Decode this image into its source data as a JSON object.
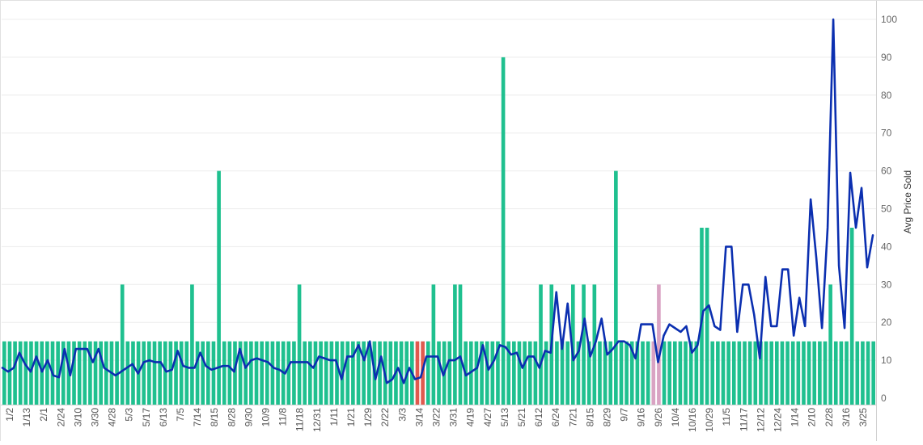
{
  "chart_data": {
    "type": "bar",
    "ylabel": "Avg Price Sold",
    "ylim": [
      0,
      100
    ],
    "y_ticks": [
      0,
      10,
      20,
      30,
      40,
      50,
      60,
      70,
      80,
      90,
      100
    ],
    "grid": "horizontal",
    "y_axis_position": "right",
    "x_tick_labels": [
      "1/2",
      "1/13",
      "2/1",
      "2/24",
      "3/10",
      "3/30",
      "4/28",
      "5/3",
      "5/17",
      "6/13",
      "7/5",
      "7/14",
      "8/15",
      "8/28",
      "9/30",
      "10/9",
      "11/8",
      "11/18",
      "12/31",
      "1/11",
      "1/21",
      "1/29",
      "2/22",
      "3/3",
      "3/14",
      "3/22",
      "3/31",
      "4/19",
      "4/27",
      "5/13",
      "5/21",
      "6/12",
      "6/24",
      "7/21",
      "8/15",
      "8/29",
      "9/7",
      "9/16",
      "9/26",
      "10/4",
      "10/16",
      "10/29",
      "11/5",
      "11/17",
      "12/12",
      "12/24",
      "1/14",
      "2/10",
      "2/28",
      "3/16",
      "3/25"
    ],
    "bar_values": [
      15,
      15,
      15,
      15,
      15,
      15,
      15,
      15,
      15,
      15,
      15,
      15,
      15,
      15,
      15,
      15,
      15,
      15,
      15,
      15,
      15,
      15,
      30,
      15,
      15,
      15,
      15,
      15,
      15,
      15,
      15,
      15,
      15,
      15,
      15,
      30,
      15,
      15,
      15,
      15,
      60,
      15,
      15,
      15,
      15,
      15,
      15,
      15,
      15,
      15,
      15,
      15,
      15,
      15,
      15,
      30,
      15,
      15,
      15,
      15,
      15,
      15,
      15,
      15,
      15,
      15,
      15,
      15,
      15,
      15,
      15,
      15,
      15,
      15,
      15,
      15,
      15,
      15,
      15,
      15,
      30,
      15,
      15,
      15,
      30,
      30,
      15,
      15,
      15,
      15,
      15,
      15,
      15,
      90,
      15,
      15,
      15,
      15,
      15,
      15,
      30,
      15,
      30,
      15,
      15,
      15,
      30,
      15,
      30,
      15,
      30,
      15,
      15,
      15,
      60,
      15,
      15,
      15,
      15,
      15,
      15,
      15,
      30,
      15,
      15,
      15,
      15,
      15,
      15,
      15,
      45,
      45,
      15,
      15,
      15,
      15,
      15,
      15,
      15,
      15,
      15,
      15,
      15,
      15,
      15,
      15,
      15,
      15,
      15,
      15,
      15,
      15,
      15,
      15,
      30,
      15,
      15,
      15,
      45,
      15,
      15,
      15,
      15
    ],
    "bar_colors": {
      "default": "#1fc08f",
      "highlight_red": "#e05a4f",
      "highlight_pink": "#d9a3c3",
      "red_indices": [
        77,
        78
      ],
      "pink_indices": [
        121,
        122
      ]
    },
    "line_values": [
      8,
      7,
      8,
      12,
      9,
      7,
      11,
      7,
      10,
      6,
      5.5,
      13,
      6,
      13,
      13,
      13,
      9.5,
      13,
      8,
      7,
      6,
      7,
      8,
      9,
      6.5,
      9.5,
      10,
      9.5,
      9.5,
      7,
      7.5,
      12.5,
      8.5,
      8,
      8,
      12,
      8.5,
      7.5,
      8,
      8.5,
      8.5,
      7,
      13,
      8,
      10,
      10.5,
      10,
      9.5,
      8,
      7.5,
      6.5,
      9.5,
      9.5,
      9.5,
      9.5,
      8,
      11,
      10.5,
      10,
      10,
      5,
      11,
      11,
      14,
      10,
      15,
      5,
      11,
      4,
      5,
      8,
      4,
      8,
      5,
      5.5,
      11,
      11,
      11,
      6,
      10,
      10,
      11,
      6,
      7,
      8,
      14,
      7.5,
      10,
      14,
      13.5,
      11.5,
      12,
      8,
      11,
      11,
      8,
      12.5,
      12,
      28,
      13,
      25,
      10,
      12.5,
      21,
      11,
      15,
      21,
      11.5,
      13,
      15,
      15,
      14,
      10.5,
      19.5,
      19.5,
      19.5,
      9.5,
      16.5,
      19.5,
      18.5,
      17.5,
      19,
      12,
      14,
      23,
      24.5,
      19,
      18,
      40,
      40,
      17.5,
      30,
      30,
      22,
      10.5,
      32,
      19,
      19,
      34,
      34,
      16.5,
      26.5,
      19,
      52.5,
      37,
      18.5,
      45,
      100,
      35,
      18.5,
      59.5,
      45,
      55.5,
      34.5,
      43
    ]
  }
}
